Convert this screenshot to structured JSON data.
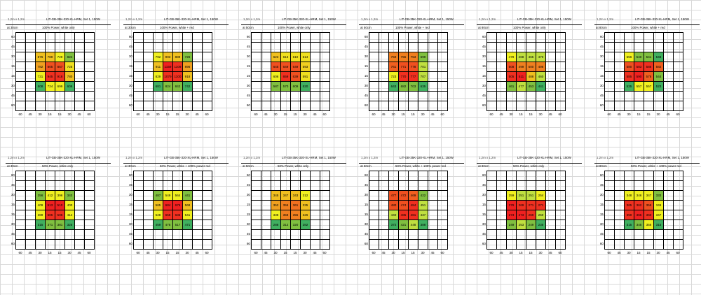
{
  "common": {
    "room": "1,2m x 1,2m",
    "y_labels": [
      "60",
      "45",
      "30",
      "15",
      "15",
      "30",
      "45",
      "60"
    ],
    "x_labels": [
      "60",
      "45",
      "30",
      "15",
      "15",
      "30",
      "45",
      "60"
    ]
  },
  "panels": [
    {
      "product": "LIT-GB-35K-320-XL-HRM, Set 1, 150W",
      "distance": "at 30cm",
      "power": "100% Power, white only",
      "values": [
        [
          "876",
          "789",
          "729",
          "824"
        ],
        [
          "782",
          "805",
          "857",
          "725"
        ],
        [
          "731",
          "945",
          "918",
          "780"
        ],
        [
          "508",
          "724",
          "699",
          "606"
        ]
      ],
      "colors": [
        [
          "#f0c020",
          "#f0c020",
          "#f0f020",
          "#80c040"
        ],
        [
          "#f0a020",
          "#f05020",
          "#f05020",
          "#f0e020"
        ],
        [
          "#f0f020",
          "#f03020",
          "#f03020",
          "#f0c020"
        ],
        [
          "#40b060",
          "#f0f020",
          "#f0f020",
          "#40b060"
        ]
      ]
    },
    {
      "product": "LIT-GB-35K-320-XL-HRM, Set 1, 150W",
      "distance": "at 30cm",
      "power": "100% Power, white + red",
      "values": [
        [
          "792",
          "903",
          "889",
          "726"
        ],
        [
          "911",
          "1159",
          "1109",
          "896"
        ],
        [
          "829",
          "1079",
          "1100",
          "918"
        ],
        [
          "681",
          "824",
          "842",
          "742"
        ]
      ],
      "colors": [
        [
          "#f0f020",
          "#f0c020",
          "#f0c020",
          "#80c040"
        ],
        [
          "#f0c020",
          "#f02020",
          "#f03020",
          "#f0a020"
        ],
        [
          "#f0f020",
          "#f03020",
          "#f03020",
          "#f0c020"
        ],
        [
          "#40b060",
          "#80c040",
          "#80c040",
          "#40b060"
        ]
      ]
    },
    {
      "product": "LIT-GB-35K-320-XL-HRM, Set 1, 150W",
      "distance": "at 50cm",
      "power": "100% Power, white only",
      "values": [
        [
          "623",
          "613",
          "610",
          "614"
        ],
        [
          "645",
          "649",
          "649",
          "593"
        ],
        [
          "606",
          "659",
          "639",
          "591"
        ],
        [
          "587",
          "570",
          "609",
          "520"
        ]
      ],
      "colors": [
        [
          "#f0c020",
          "#f0e020",
          "#f0e020",
          "#f0e020"
        ],
        [
          "#f05020",
          "#f05020",
          "#f05020",
          "#f0d020"
        ],
        [
          "#f0f020",
          "#f03020",
          "#f05020",
          "#f0e020"
        ],
        [
          "#80c040",
          "#80c040",
          "#80c040",
          "#40b060"
        ]
      ]
    },
    {
      "product": "LIT-GB-35K-320-XL-HRM, Set 1, 150W",
      "distance": "at 50cm",
      "power": "100% Power, white + red",
      "values": [
        [
          "759",
          "755",
          "753",
          "699"
        ],
        [
          "761",
          "771",
          "778",
          "701"
        ],
        [
          "723",
          "770",
          "777",
          "707"
        ],
        [
          "643",
          "682",
          "703",
          "635"
        ]
      ],
      "colors": [
        [
          "#f08020",
          "#f08020",
          "#f08020",
          "#80c040"
        ],
        [
          "#f06020",
          "#f05020",
          "#f05020",
          "#c0e040"
        ],
        [
          "#f0f020",
          "#f03020",
          "#f03020",
          "#c0e040"
        ],
        [
          "#40b060",
          "#80c040",
          "#80c040",
          "#40b060"
        ]
      ]
    },
    {
      "product": "LIT-GB-35K-320-XL-HRM, Set 1, 150W",
      "distance": "at 80cm",
      "power": "100% Power, white only",
      "values": [
        [
          "478",
          "468",
          "465",
          "470"
        ],
        [
          "508",
          "499",
          "500",
          "498"
        ],
        [
          "505",
          "511",
          "488",
          "460"
        ],
        [
          "461",
          "477",
          "453",
          "441"
        ]
      ],
      "colors": [
        [
          "#f0f020",
          "#c0e040",
          "#c0e040",
          "#c0e040"
        ],
        [
          "#f05020",
          "#f08020",
          "#f08020",
          "#f08020"
        ],
        [
          "#f03020",
          "#f02020",
          "#f0c020",
          "#c0e040"
        ],
        [
          "#80c040",
          "#c0e040",
          "#80c040",
          "#40b060"
        ]
      ]
    },
    {
      "product": "LIT-GB-35K-320-XL-HRM, Set 1, 150W",
      "distance": "at 80cm",
      "power": "100% Power, white + red",
      "values": [
        [
          "556",
          "540",
          "541",
          "548"
        ],
        [
          "580",
          "583",
          "586",
          "582"
        ],
        [
          "585",
          "590",
          "578",
          "544"
        ],
        [
          "535",
          "557",
          "557",
          "523"
        ]
      ],
      "colors": [
        [
          "#f0f020",
          "#80c040",
          "#80c040",
          "#40b060"
        ],
        [
          "#f05020",
          "#f03020",
          "#f03020",
          "#f06020"
        ],
        [
          "#f03020",
          "#f02020",
          "#f06020",
          "#80c040"
        ],
        [
          "#40b060",
          "#f0f020",
          "#f0f020",
          "#40b060"
        ]
      ]
    },
    {
      "product": "LIT-GB-35K-320-XL-HRM, Set 1, 150W",
      "distance": "at 30cm",
      "power": "50% Power, white only",
      "values": [
        [
          "356",
          "412",
          "396",
          "343"
        ],
        [
          "409",
          "513",
          "510",
          "400"
        ],
        [
          "389",
          "505",
          "505",
          "414"
        ],
        [
          "315",
          "371",
          "381",
          "325"
        ]
      ],
      "colors": [
        [
          "#80c040",
          "#f0f020",
          "#f0f020",
          "#80c040"
        ],
        [
          "#f0f020",
          "#f02020",
          "#f02020",
          "#f0f020"
        ],
        [
          "#f0f020",
          "#f03020",
          "#f03020",
          "#f0f020"
        ],
        [
          "#40b060",
          "#80c040",
          "#80c040",
          "#40b060"
        ]
      ]
    },
    {
      "product": "LIT-GB-35K-320-XL-HRM, Set 1, 150W",
      "distance": "at 30cm",
      "power": "50% Power, white + 100% power red",
      "values": [
        [
          "487",
          "549",
          "564",
          "441"
        ],
        [
          "565",
          "684",
          "676",
          "568"
        ],
        [
          "528",
          "658",
          "635",
          "541"
        ],
        [
          "459",
          "475",
          "517",
          "471"
        ]
      ],
      "colors": [
        [
          "#80c040",
          "#f0f020",
          "#f0f020",
          "#80c040"
        ],
        [
          "#f0c020",
          "#f02020",
          "#f02020",
          "#f0c020"
        ],
        [
          "#f0f020",
          "#f03020",
          "#f03020",
          "#f0f020"
        ],
        [
          "#40b060",
          "#80c040",
          "#80c040",
          "#40b060"
        ]
      ]
    },
    {
      "product": "LIT-GB-35K-320-XL-HRM, Set 1, 150W",
      "distance": "at 50cm",
      "power": "50% Power, white only",
      "values": [
        [
          "345",
          "347",
          "343",
          "312"
        ],
        [
          "352",
          "356",
          "361",
          "335"
        ],
        [
          "338",
          "358",
          "355",
          "326"
        ],
        [
          "288",
          "312",
          "320",
          "282"
        ]
      ],
      "colors": [
        [
          "#f0c020",
          "#f0c020",
          "#f0c020",
          "#f0f020"
        ],
        [
          "#f0a020",
          "#f08020",
          "#f07020",
          "#f0c020"
        ],
        [
          "#f0f020",
          "#f08020",
          "#f08020",
          "#f0c020"
        ],
        [
          "#40b060",
          "#80c040",
          "#80c040",
          "#40b060"
        ]
      ]
    },
    {
      "product": "LIT-GB-35K-320-XL-HRM, Set 1, 150W",
      "distance": "at 50cm",
      "power": "50% Power, white + 100% power red",
      "values": [
        [
          "477",
          "472",
          "469",
          "422"
        ],
        [
          "480",
          "474",
          "484",
          "451"
        ],
        [
          "440",
          "485",
          "481",
          "437"
        ],
        [
          "372",
          "421",
          "448",
          "388"
        ]
      ],
      "colors": [
        [
          "#f05020",
          "#f05020",
          "#f06020",
          "#80c040"
        ],
        [
          "#f05020",
          "#f05020",
          "#f03020",
          "#c0e040"
        ],
        [
          "#c0e040",
          "#f03020",
          "#f03020",
          "#c0e040"
        ],
        [
          "#40b060",
          "#80c040",
          "#c0e040",
          "#40b060"
        ]
      ]
    },
    {
      "product": "LIT-GB-35K-320-XL-HRM, Set 1, 150W",
      "distance": "at 80cm",
      "power": "50% Power, white only",
      "values": [
        [
          "259",
          "251",
          "251",
          "254"
        ],
        [
          "276",
          "269",
          "271",
          "271"
        ],
        [
          "273",
          "273",
          "269",
          "250"
        ],
        [
          "249",
          "253",
          "249",
          "235"
        ]
      ],
      "colors": [
        [
          "#f0f020",
          "#c0e040",
          "#c0e040",
          "#f0f020"
        ],
        [
          "#f02020",
          "#f03020",
          "#f03020",
          "#f03020"
        ],
        [
          "#f02020",
          "#f02020",
          "#f03020",
          "#c0e040"
        ],
        [
          "#80c040",
          "#c0e040",
          "#80c040",
          "#40b060"
        ]
      ]
    },
    {
      "product": "LIT-GB-35K-320-XL-HRM, Set 1, 150W",
      "distance": "at 80cm",
      "power": "50% Power, white + 100% power red",
      "values": [
        [
          "348",
          "346",
          "347",
          "333"
        ],
        [
          "365",
          "362",
          "359",
          "349"
        ],
        [
          "359",
          "365",
          "360",
          "347"
        ],
        [
          "315",
          "345",
          "356",
          "315"
        ]
      ],
      "colors": [
        [
          "#f0f020",
          "#f0f020",
          "#f0f020",
          "#80c040"
        ],
        [
          "#f03020",
          "#f03020",
          "#f05020",
          "#f0f020"
        ],
        [
          "#f03020",
          "#f02020",
          "#f03020",
          "#f0f020"
        ],
        [
          "#40b060",
          "#80c040",
          "#f0f020",
          "#40b060"
        ]
      ]
    }
  ]
}
